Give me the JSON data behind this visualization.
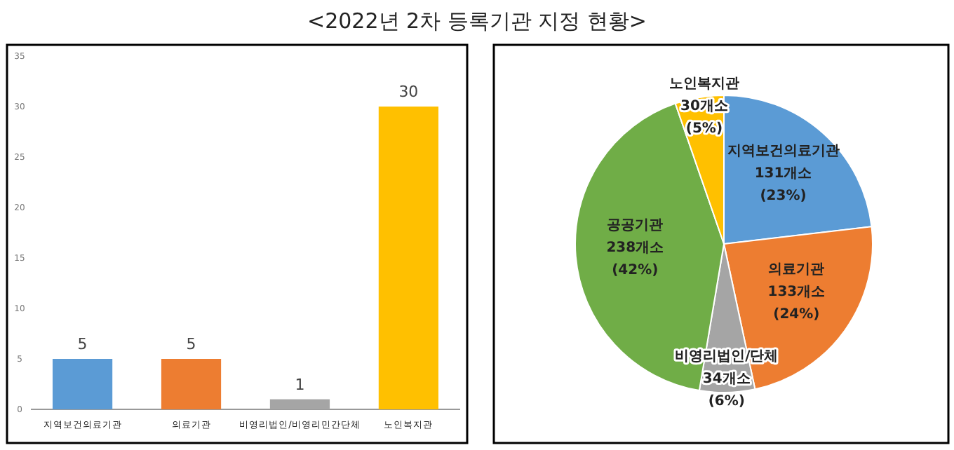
{
  "chart_data": [
    {
      "type": "bar",
      "title": "<2022년 2차 등록기관 지정 현황>",
      "categories": [
        "지역보건의료기관",
        "의료기관",
        "비영리법인/비영리민간단체",
        "노인복지관"
      ],
      "values": [
        5,
        5,
        1,
        30
      ],
      "colors": [
        "#5b9bd5",
        "#ed7d31",
        "#a5a5a5",
        "#ffc000"
      ],
      "ylim": [
        0,
        35
      ],
      "yticks": [
        0,
        5,
        10,
        15,
        20,
        25,
        30,
        35
      ],
      "data_labels": true,
      "grid": false
    },
    {
      "type": "pie",
      "categories": [
        "지역보건의료기관",
        "의료기관",
        "비영리법인/단체",
        "공공기관",
        "노인복지관"
      ],
      "values": [
        131,
        133,
        34,
        238,
        30
      ],
      "colors": [
        "#5b9bd5",
        "#ed7d31",
        "#a5a5a5",
        "#70ad47",
        "#ffc000"
      ],
      "value_labels": [
        "131개소 (23%)",
        "133개소 (24%)",
        "34개소 (6%)",
        "238개소 (42%)",
        "30개소 (5%)"
      ]
    }
  ]
}
